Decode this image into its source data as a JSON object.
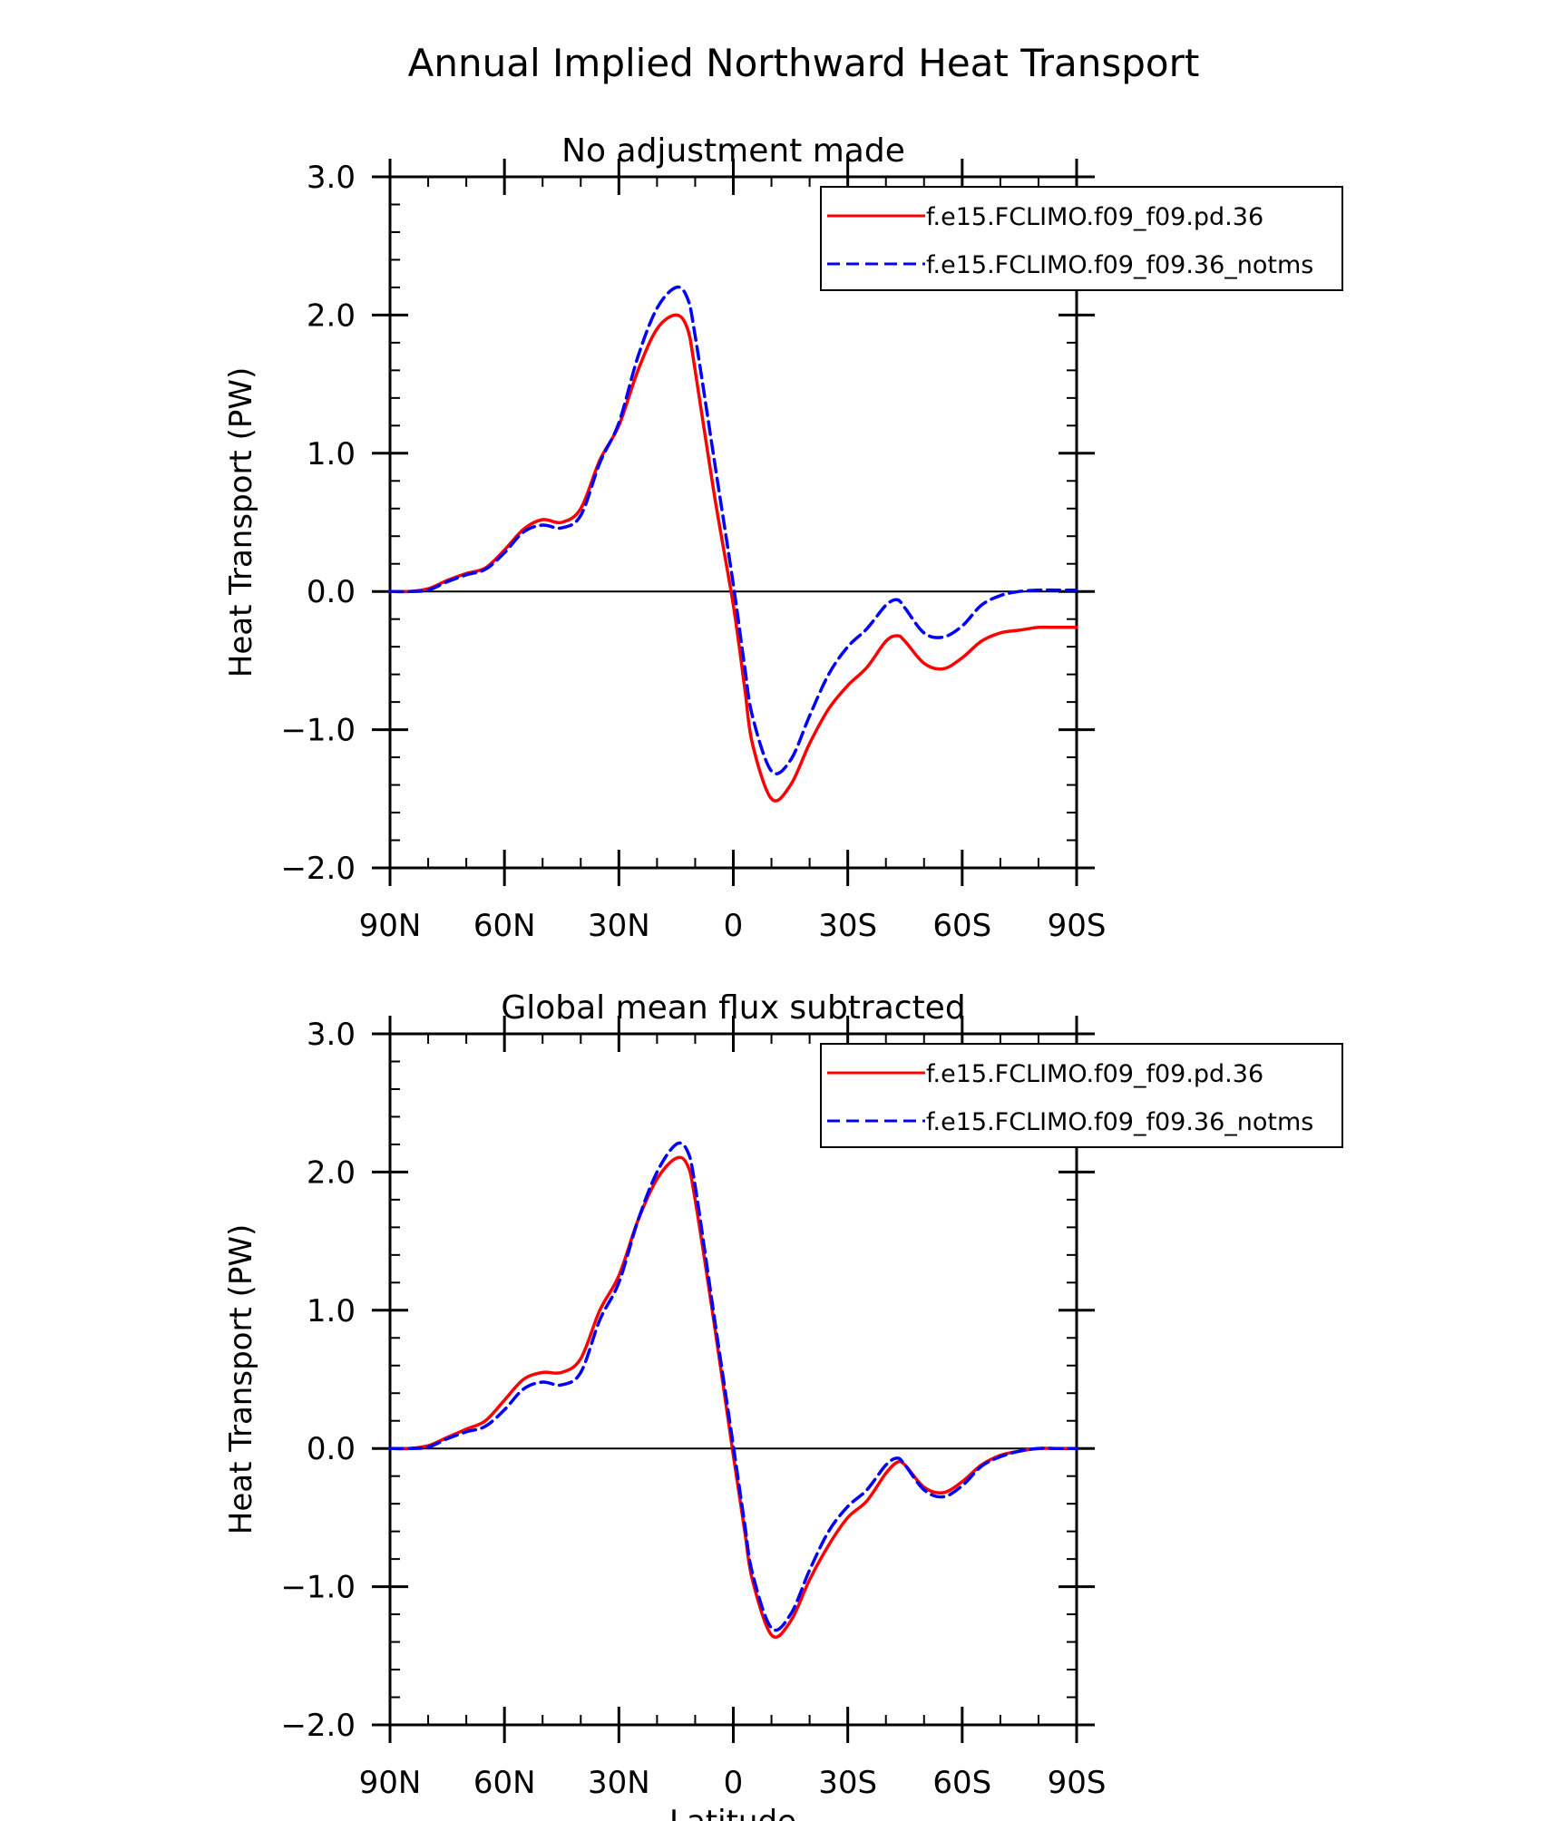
{
  "figure": {
    "title": "Annual Implied Northward Heat Transport",
    "ylabel": "Heat Transport (PW)",
    "xlabel": "Latitude"
  },
  "chart_data": [
    {
      "type": "line",
      "title": "No adjustment made",
      "xlabel": "",
      "ylabel": "Heat Transport (PW)",
      "xlim": [
        90,
        -90
      ],
      "ylim": [
        -2.0,
        3.0
      ],
      "x_tick_values": [
        90,
        60,
        30,
        0,
        -30,
        -60,
        -90
      ],
      "x_tick_labels": [
        "90N",
        "60N",
        "30N",
        "0",
        "30S",
        "60S",
        "90S"
      ],
      "y_tick_values": [
        3.0,
        2.0,
        1.0,
        0.0,
        -1.0,
        -2.0
      ],
      "y_tick_labels": [
        "3.0",
        "2.0",
        "1.0",
        "0.0",
        "−1.0",
        "−2.0"
      ],
      "x": [
        90,
        85,
        80,
        75,
        70,
        65,
        60,
        55,
        50,
        45,
        40,
        35,
        30,
        25,
        20,
        15,
        12,
        10,
        5,
        0,
        -3,
        -5,
        -10,
        -15,
        -20,
        -25,
        -30,
        -35,
        -40,
        -43,
        -45,
        -50,
        -55,
        -60,
        -65,
        -70,
        -75,
        -80,
        -85,
        -90
      ],
      "series": [
        {
          "name": "f.e15.FCLIMO.f09_f09.pd.36",
          "color": "#ff0000",
          "dash": "solid",
          "values": [
            0.0,
            0.0,
            0.02,
            0.08,
            0.13,
            0.17,
            0.3,
            0.45,
            0.52,
            0.5,
            0.6,
            0.95,
            1.2,
            1.6,
            1.9,
            2.0,
            1.9,
            1.6,
            0.7,
            -0.1,
            -0.7,
            -1.1,
            -1.5,
            -1.4,
            -1.1,
            -0.85,
            -0.68,
            -0.55,
            -0.36,
            -0.32,
            -0.36,
            -0.52,
            -0.56,
            -0.48,
            -0.36,
            -0.3,
            -0.28,
            -0.26,
            -0.26,
            -0.26
          ]
        },
        {
          "name": "f.e15.FCLIMO.f09_f09.36_notms",
          "color": "#0000ff",
          "dash": "dashed",
          "values": [
            0.0,
            0.0,
            0.01,
            0.07,
            0.12,
            0.16,
            0.28,
            0.43,
            0.48,
            0.46,
            0.55,
            0.93,
            1.22,
            1.7,
            2.05,
            2.2,
            2.12,
            1.85,
            0.95,
            0.05,
            -0.55,
            -0.9,
            -1.3,
            -1.22,
            -0.9,
            -0.6,
            -0.4,
            -0.27,
            -0.1,
            -0.06,
            -0.12,
            -0.3,
            -0.33,
            -0.25,
            -0.1,
            -0.03,
            0.0,
            0.01,
            0.01,
            0.01
          ]
        }
      ]
    },
    {
      "type": "line",
      "title": "Global mean flux subtracted",
      "xlabel": "Latitude",
      "ylabel": "Heat Transport (PW)",
      "xlim": [
        90,
        -90
      ],
      "ylim": [
        -2.0,
        3.0
      ],
      "x_tick_values": [
        90,
        60,
        30,
        0,
        -30,
        -60,
        -90
      ],
      "x_tick_labels": [
        "90N",
        "60N",
        "30N",
        "0",
        "30S",
        "60S",
        "90S"
      ],
      "y_tick_values": [
        3.0,
        2.0,
        1.0,
        0.0,
        -1.0,
        -2.0
      ],
      "y_tick_labels": [
        "3.0",
        "2.0",
        "1.0",
        "0.0",
        "−1.0",
        "−2.0"
      ],
      "x": [
        90,
        85,
        80,
        75,
        70,
        65,
        60,
        55,
        50,
        45,
        40,
        35,
        30,
        25,
        20,
        15,
        12,
        10,
        5,
        0,
        -3,
        -5,
        -10,
        -15,
        -20,
        -25,
        -30,
        -35,
        -40,
        -43,
        -45,
        -50,
        -55,
        -60,
        -65,
        -70,
        -75,
        -80,
        -85,
        -90
      ],
      "series": [
        {
          "name": "f.e15.FCLIMO.f09_f09.pd.36",
          "color": "#ff0000",
          "dash": "solid",
          "values": [
            0.0,
            0.0,
            0.02,
            0.08,
            0.14,
            0.2,
            0.35,
            0.5,
            0.55,
            0.55,
            0.65,
            1.0,
            1.25,
            1.65,
            1.95,
            2.1,
            2.05,
            1.8,
            0.9,
            -0.05,
            -0.6,
            -0.95,
            -1.35,
            -1.25,
            -0.95,
            -0.7,
            -0.5,
            -0.38,
            -0.18,
            -0.1,
            -0.12,
            -0.28,
            -0.32,
            -0.24,
            -0.12,
            -0.05,
            -0.02,
            0.0,
            0.0,
            0.0
          ]
        },
        {
          "name": "f.e15.FCLIMO.f09_f09.36_notms",
          "color": "#0000ff",
          "dash": "dashed",
          "values": [
            0.0,
            0.0,
            0.01,
            0.07,
            0.12,
            0.16,
            0.28,
            0.43,
            0.48,
            0.46,
            0.55,
            0.93,
            1.2,
            1.65,
            2.0,
            2.2,
            2.15,
            1.9,
            0.95,
            0.02,
            -0.55,
            -0.9,
            -1.3,
            -1.2,
            -0.88,
            -0.6,
            -0.42,
            -0.3,
            -0.12,
            -0.07,
            -0.12,
            -0.3,
            -0.35,
            -0.27,
            -0.13,
            -0.06,
            -0.02,
            0.0,
            0.0,
            0.0
          ]
        }
      ]
    }
  ]
}
